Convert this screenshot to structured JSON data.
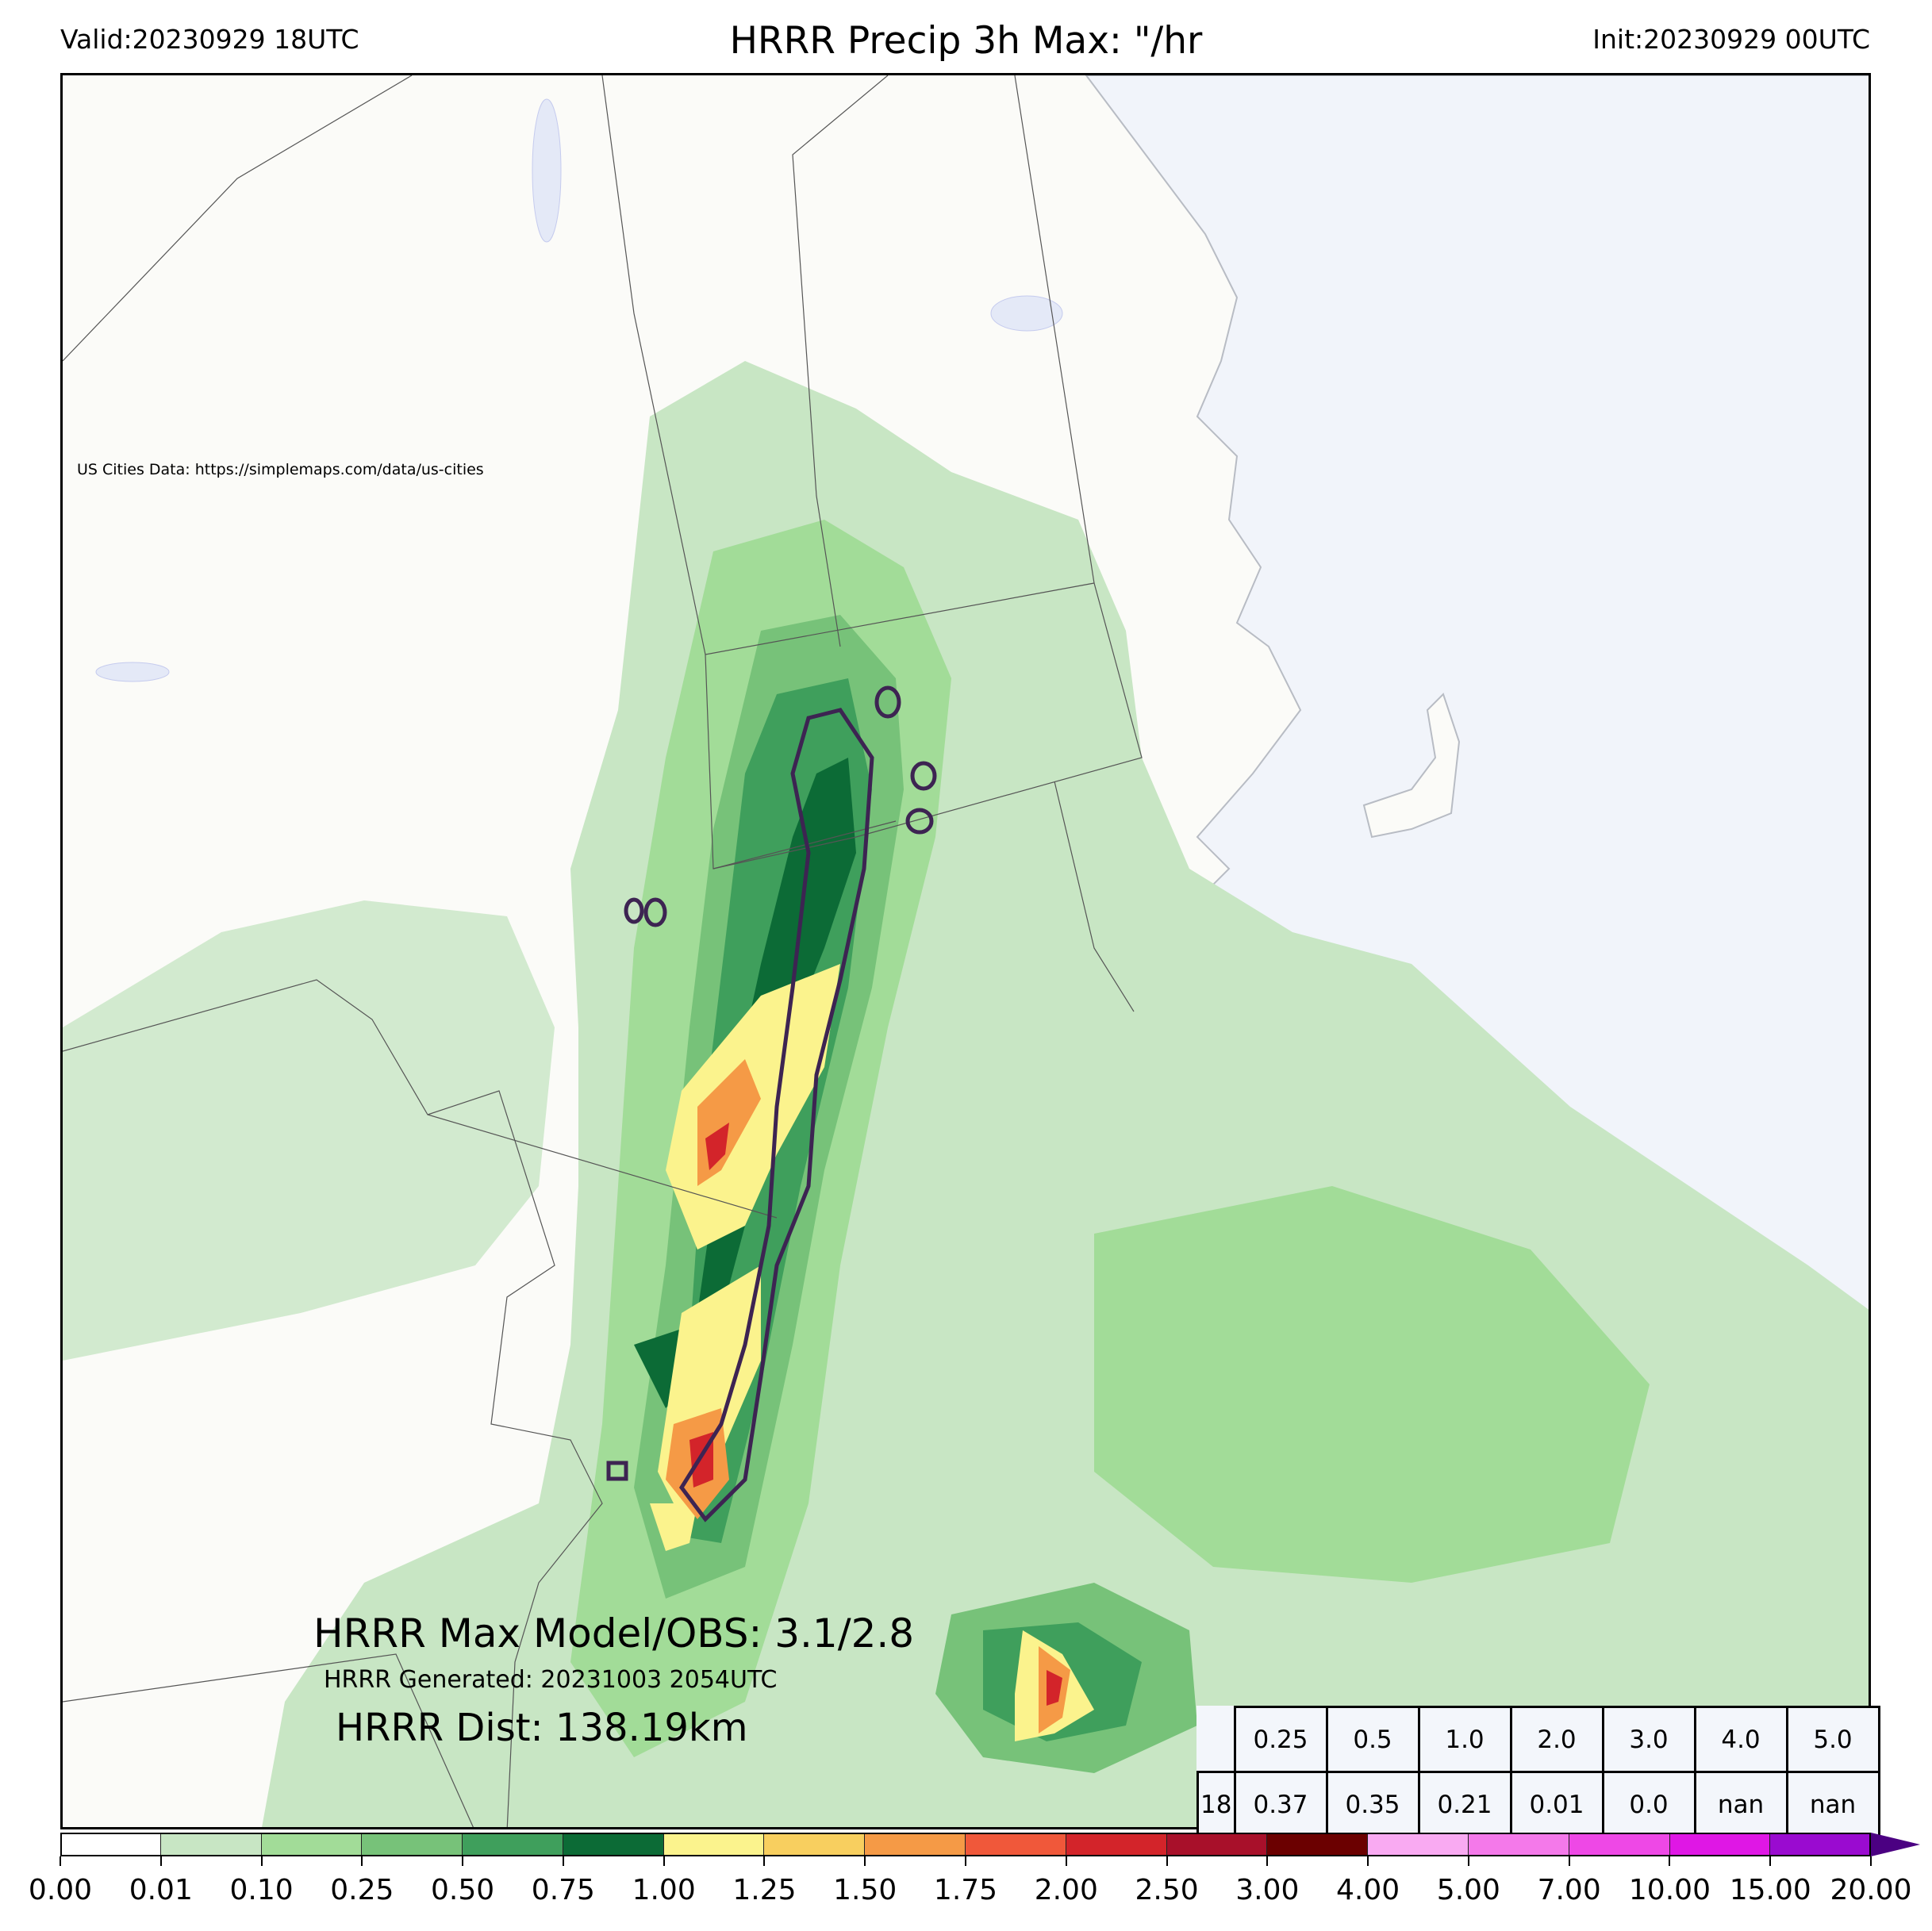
{
  "header": {
    "valid": "Valid:20230929 18UTC",
    "title": "HRRR Precip 3h Max: \"/hr",
    "init": "Init:20230929 00UTC"
  },
  "map": {
    "credit": "US Cities Data: https://simplemaps.com/data/us-cities",
    "max_model_obs": "HRRR Max Model/OBS: 3.1/2.8",
    "generated": "HRRR Generated: 20231003 2054UTC",
    "distance": "HRRR Dist: 138.19km",
    "colors": {
      "land": "#fbfbf8",
      "ocean": "#f1f4fa",
      "lakes": "#e4e9f7",
      "observed_contour": "#3d2452"
    }
  },
  "stats_table": {
    "thresholds": [
      "0.25",
      "0.5",
      "1.0",
      "2.0",
      "3.0",
      "4.0",
      "5.0"
    ],
    "row_label": "18",
    "values": [
      "0.37",
      "0.35",
      "0.21",
      "0.01",
      "0.0",
      "nan",
      "nan"
    ]
  },
  "colorbar": {
    "ticks": [
      "0.00",
      "0.01",
      "0.10",
      "0.25",
      "0.50",
      "0.75",
      "1.00",
      "1.25",
      "1.50",
      "1.75",
      "2.00",
      "2.50",
      "3.00",
      "4.00",
      "5.00",
      "7.00",
      "10.00",
      "15.00",
      "20.00"
    ],
    "colors": [
      "#ffffff",
      "#c8e6c4",
      "#a2dc98",
      "#77c279",
      "#3f9f5c",
      "#0c6b36",
      "#fbf38d",
      "#f8cf5f",
      "#f59a46",
      "#f0583a",
      "#d3242a",
      "#a8102a",
      "#6b0000",
      "#f9aaf2",
      "#f479ea",
      "#ee48e6",
      "#df17e5",
      "#9a0bd0"
    ],
    "extend_color": "#4b0082"
  }
}
